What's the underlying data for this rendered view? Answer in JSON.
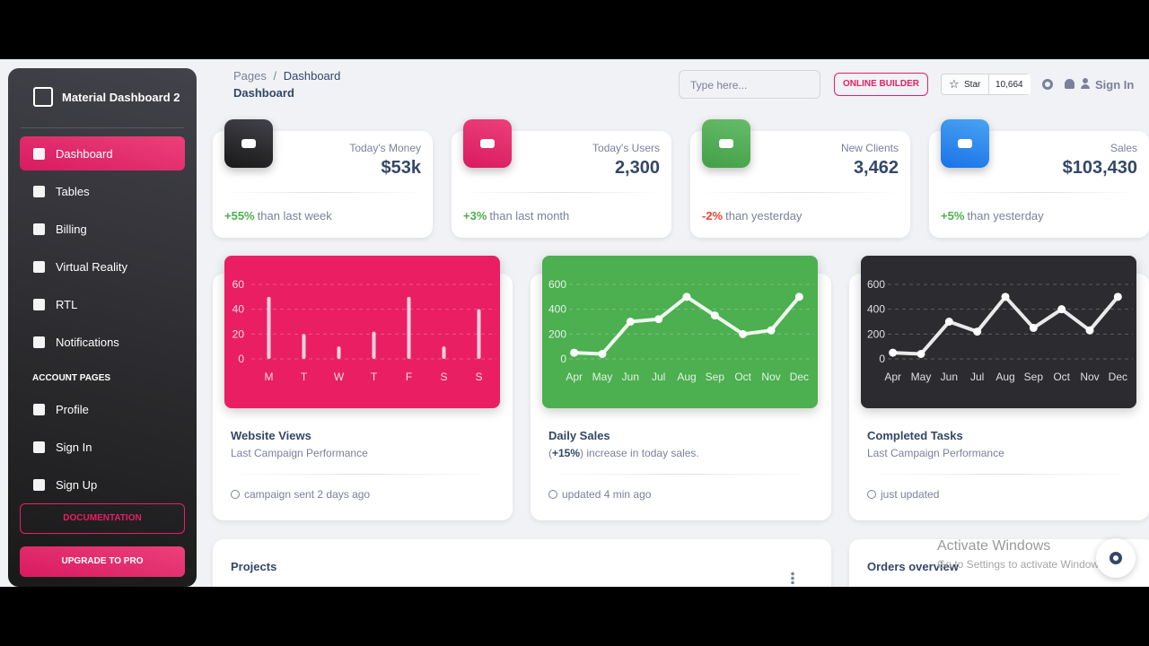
{
  "sidebar": {
    "brand": "Material Dashboard 2",
    "nav": [
      "Dashboard",
      "Tables",
      "Billing",
      "Virtual Reality",
      "RTL",
      "Notifications"
    ],
    "section": "ACCOUNT PAGES",
    "account_nav": [
      "Profile",
      "Sign In",
      "Sign Up"
    ],
    "buttons": [
      "DOCUMENTATION",
      "UPGRADE TO PRO"
    ]
  },
  "header": {
    "breadcrumb": [
      "Pages",
      "/",
      "Dashboard"
    ],
    "title": "Dashboard",
    "search_placeholder": "Type here...",
    "builder_button": "ONLINE BUILDER",
    "star_label": "Star",
    "star_count": "10,664",
    "sign_in": "Sign In"
  },
  "stats": [
    {
      "title": "Today's Money",
      "value": "$53k",
      "change": "+55%",
      "note": "than last week"
    },
    {
      "title": "Today's Users",
      "value": "2,300",
      "change": "+3%",
      "note": "than last month"
    },
    {
      "title": "New Clients",
      "value": "3,462",
      "change": "-2%",
      "note": "than yesterday"
    },
    {
      "title": "Sales",
      "value": "$103,430",
      "change": "+5%",
      "note": "than yesterday"
    }
  ],
  "chart_cards": [
    {
      "title": "Website Views",
      "subtitle": "Last Campaign Performance",
      "footer": "campaign sent 2 days ago"
    },
    {
      "title": "Daily Sales",
      "subtitle": {
        "before": "(",
        "bold": "+15%",
        "after": ") increase in today sales."
      },
      "footer": "updated 4 min ago"
    },
    {
      "title": "Completed Tasks",
      "subtitle": "Last Campaign Performance",
      "footer": "just updated"
    }
  ],
  "chart_data": [
    {
      "type": "bar",
      "categories": [
        "M",
        "T",
        "W",
        "T",
        "F",
        "S",
        "S"
      ],
      "values": [
        50,
        20,
        10,
        22,
        50,
        10,
        40
      ],
      "ylim": [
        0,
        60
      ],
      "yticks": [
        0,
        20,
        40,
        60
      ],
      "grid": true,
      "color": "#ffffff",
      "background": "#e91e63"
    },
    {
      "type": "line",
      "categories": [
        "Apr",
        "May",
        "Jun",
        "Jul",
        "Aug",
        "Sep",
        "Oct",
        "Nov",
        "Dec"
      ],
      "values": [
        50,
        40,
        300,
        320,
        500,
        350,
        200,
        230,
        500
      ],
      "ylim": [
        0,
        600
      ],
      "yticks": [
        0,
        200,
        400,
        600
      ],
      "grid": true,
      "color": "#ffffff",
      "background": "#4caf50"
    },
    {
      "type": "line",
      "categories": [
        "Apr",
        "May",
        "Jun",
        "Jul",
        "Aug",
        "Sep",
        "Oct",
        "Nov",
        "Dec"
      ],
      "values": [
        50,
        40,
        300,
        220,
        500,
        250,
        400,
        230,
        500
      ],
      "ylim": [
        0,
        600
      ],
      "yticks": [
        0,
        200,
        400,
        600
      ],
      "grid": true,
      "color": "#ffffff",
      "background": "#2b2b30"
    }
  ],
  "bottom": {
    "projects": "Projects",
    "orders": "Orders overview"
  },
  "watermark": {
    "title": "Activate Windows",
    "text": "Go to Settings to activate Windows."
  }
}
